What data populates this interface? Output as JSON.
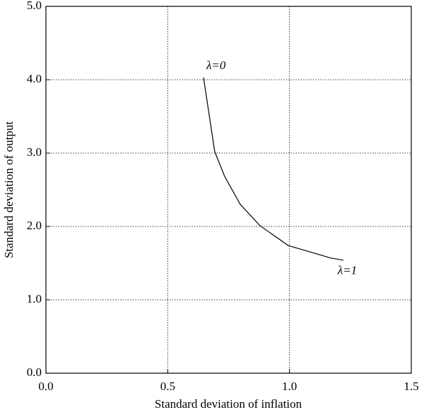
{
  "chart_data": {
    "type": "line",
    "x_label": "Standard deviation of inflation",
    "y_label": "Standard deviation of output",
    "series": [
      {
        "color": "#000000",
        "x": [
          0.647,
          0.693,
          0.734,
          0.798,
          0.879,
          0.995,
          1.169,
          1.221
        ],
        "values": [
          4.03,
          3.02,
          2.68,
          2.3,
          2.01,
          1.74,
          1.57,
          1.54
        ]
      }
    ],
    "annotations": [
      "λ=0",
      "λ=1"
    ],
    "xlim": [
      0,
      1.5
    ],
    "xticks": [
      {
        "value": 0,
        "label": "0.0"
      },
      {
        "value": 0.5,
        "label": "0.5"
      },
      {
        "value": 1,
        "label": "1.0"
      },
      {
        "value": 1.5,
        "label": "1.5"
      }
    ],
    "ylim": [
      0,
      5
    ],
    "yticks": [
      {
        "value": 0,
        "label": "0.0"
      },
      {
        "value": 1,
        "label": "1.0"
      },
      {
        "value": 2,
        "label": "2.0"
      },
      {
        "value": 3,
        "label": "3.0"
      },
      {
        "value": 4,
        "label": "4.0"
      },
      {
        "value": 5,
        "label": "5.0"
      }
    ],
    "grid": true
  }
}
